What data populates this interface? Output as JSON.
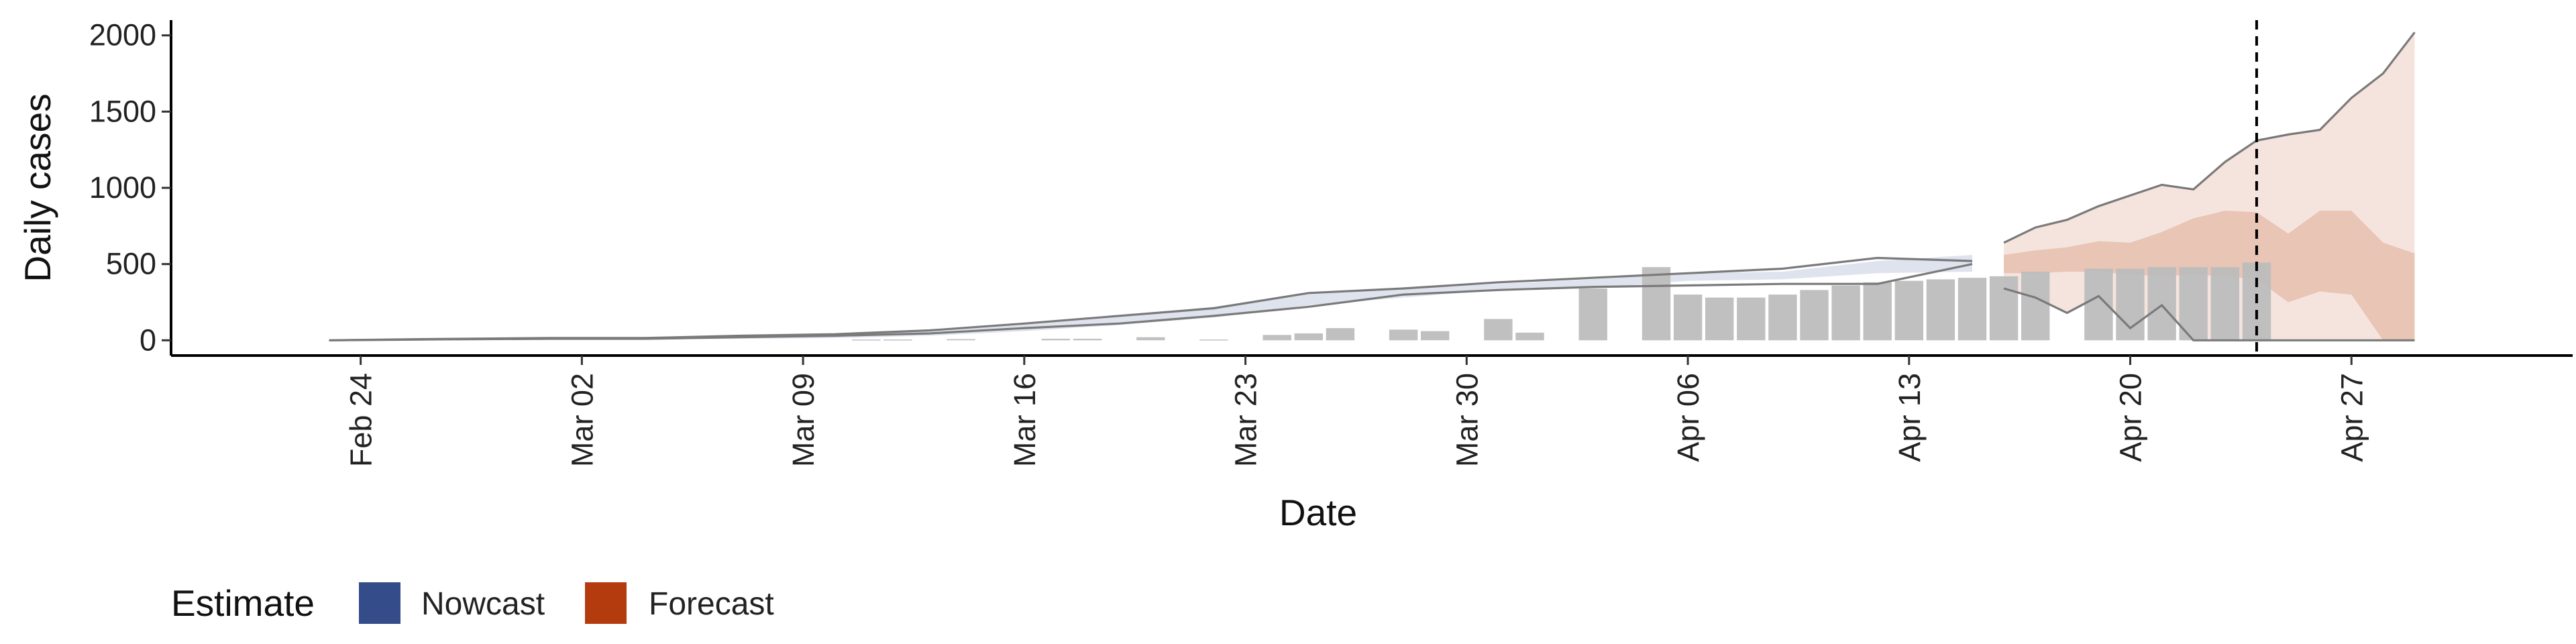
{
  "chart_data": {
    "type": "bar",
    "xlabel": "Date",
    "ylabel": "Daily cases",
    "ylim": [
      -100,
      2100
    ],
    "yticks": [
      0,
      500,
      1000,
      1500,
      2000
    ],
    "xticks": [
      {
        "date": "2020-02-24",
        "label": "Feb 24"
      },
      {
        "date": "2020-03-02",
        "label": "Mar 02"
      },
      {
        "date": "2020-03-09",
        "label": "Mar 09"
      },
      {
        "date": "2020-03-16",
        "label": "Mar 16"
      },
      {
        "date": "2020-03-23",
        "label": "Mar 23"
      },
      {
        "date": "2020-03-30",
        "label": "Mar 30"
      },
      {
        "date": "2020-04-06",
        "label": "Apr 06"
      },
      {
        "date": "2020-04-13",
        "label": "Apr 13"
      },
      {
        "date": "2020-04-20",
        "label": "Apr 20"
      },
      {
        "date": "2020-04-27",
        "label": "Apr 27"
      }
    ],
    "xlim": [
      "2020-02-18",
      "2020-05-04"
    ],
    "vline_date": "2020-04-24",
    "bars": [
      {
        "date": "2020-03-11",
        "value": 5
      },
      {
        "date": "2020-03-12",
        "value": 5
      },
      {
        "date": "2020-03-14",
        "value": 8
      },
      {
        "date": "2020-03-17",
        "value": 10
      },
      {
        "date": "2020-03-18",
        "value": 10
      },
      {
        "date": "2020-03-20",
        "value": 20
      },
      {
        "date": "2020-03-22",
        "value": 5
      },
      {
        "date": "2020-03-24",
        "value": 35
      },
      {
        "date": "2020-03-25",
        "value": 45
      },
      {
        "date": "2020-03-26",
        "value": 80
      },
      {
        "date": "2020-03-28",
        "value": 70
      },
      {
        "date": "2020-03-29",
        "value": 60
      },
      {
        "date": "2020-03-31",
        "value": 140
      },
      {
        "date": "2020-04-01",
        "value": 50
      },
      {
        "date": "2020-04-03",
        "value": 340
      },
      {
        "date": "2020-04-05",
        "value": 480
      },
      {
        "date": "2020-04-06",
        "value": 300
      },
      {
        "date": "2020-04-07",
        "value": 280
      },
      {
        "date": "2020-04-08",
        "value": 280
      },
      {
        "date": "2020-04-09",
        "value": 300
      },
      {
        "date": "2020-04-10",
        "value": 330
      },
      {
        "date": "2020-04-11",
        "value": 360
      },
      {
        "date": "2020-04-12",
        "value": 380
      },
      {
        "date": "2020-04-13",
        "value": 390
      },
      {
        "date": "2020-04-14",
        "value": 400
      },
      {
        "date": "2020-04-15",
        "value": 410
      },
      {
        "date": "2020-04-16",
        "value": 420
      },
      {
        "date": "2020-04-17",
        "value": 450
      },
      {
        "date": "2020-04-19",
        "value": 470
      },
      {
        "date": "2020-04-20",
        "value": 470
      },
      {
        "date": "2020-04-21",
        "value": 480
      },
      {
        "date": "2020-04-22",
        "value": 480
      },
      {
        "date": "2020-04-23",
        "value": 480
      },
      {
        "date": "2020-04-24",
        "value": 510
      }
    ],
    "nowcast": {
      "dates": [
        "2020-02-23",
        "2020-02-26",
        "2020-03-01",
        "2020-03-04",
        "2020-03-07",
        "2020-03-10",
        "2020-03-13",
        "2020-03-16",
        "2020-03-19",
        "2020-03-22",
        "2020-03-25",
        "2020-03-28",
        "2020-03-31",
        "2020-04-03",
        "2020-04-06",
        "2020-04-09",
        "2020-04-12",
        "2020-04-15"
      ],
      "upper": [
        5,
        10,
        20,
        20,
        30,
        45,
        60,
        110,
        160,
        220,
        310,
        340,
        370,
        400,
        440,
        450,
        520,
        560
      ],
      "lower": [
        0,
        0,
        5,
        5,
        10,
        15,
        30,
        60,
        100,
        150,
        230,
        280,
        330,
        340,
        390,
        400,
        440,
        450
      ],
      "upper_line": [
        0,
        8,
        15,
        15,
        30,
        40,
        65,
        110,
        160,
        210,
        310,
        340,
        380,
        410,
        440,
        470,
        540,
        520
      ],
      "lower_line": [
        0,
        5,
        10,
        10,
        20,
        30,
        45,
        80,
        110,
        160,
        220,
        300,
        330,
        350,
        360,
        370,
        370,
        500
      ]
    },
    "forecast": {
      "dates": [
        "2020-04-16",
        "2020-04-17",
        "2020-04-18",
        "2020-04-19",
        "2020-04-20",
        "2020-04-21",
        "2020-04-22",
        "2020-04-23",
        "2020-04-24",
        "2020-04-25",
        "2020-04-26",
        "2020-04-27",
        "2020-04-28",
        "2020-04-29"
      ],
      "outer_upper": [
        640,
        740,
        790,
        880,
        950,
        1020,
        990,
        1170,
        1310,
        1350,
        1380,
        1590,
        1750,
        2020
      ],
      "outer_lower": [
        340,
        280,
        180,
        290,
        80,
        230,
        0,
        0,
        0,
        0,
        0,
        0,
        0,
        0
      ],
      "inner_upper": [
        560,
        590,
        610,
        650,
        640,
        710,
        800,
        850,
        840,
        700,
        850,
        850,
        640,
        570
      ],
      "inner_lower": [
        440,
        440,
        450,
        450,
        430,
        420,
        430,
        420,
        400,
        250,
        320,
        300,
        0,
        0
      ]
    },
    "legend": {
      "title": "Estimate",
      "entries": [
        {
          "name": "Nowcast",
          "color": "#344C8A"
        },
        {
          "name": "Forecast",
          "color": "#B43B0D"
        }
      ],
      "placement": "bottom"
    },
    "colors": {
      "bar": "#BDBDBD",
      "nowcast_band": "#DCE0EC",
      "forecast_outer": "#F5E4DE",
      "forecast_inner": "#E5C0AE",
      "estimate_line": "#7a7a7a",
      "axis": "#000000"
    }
  }
}
